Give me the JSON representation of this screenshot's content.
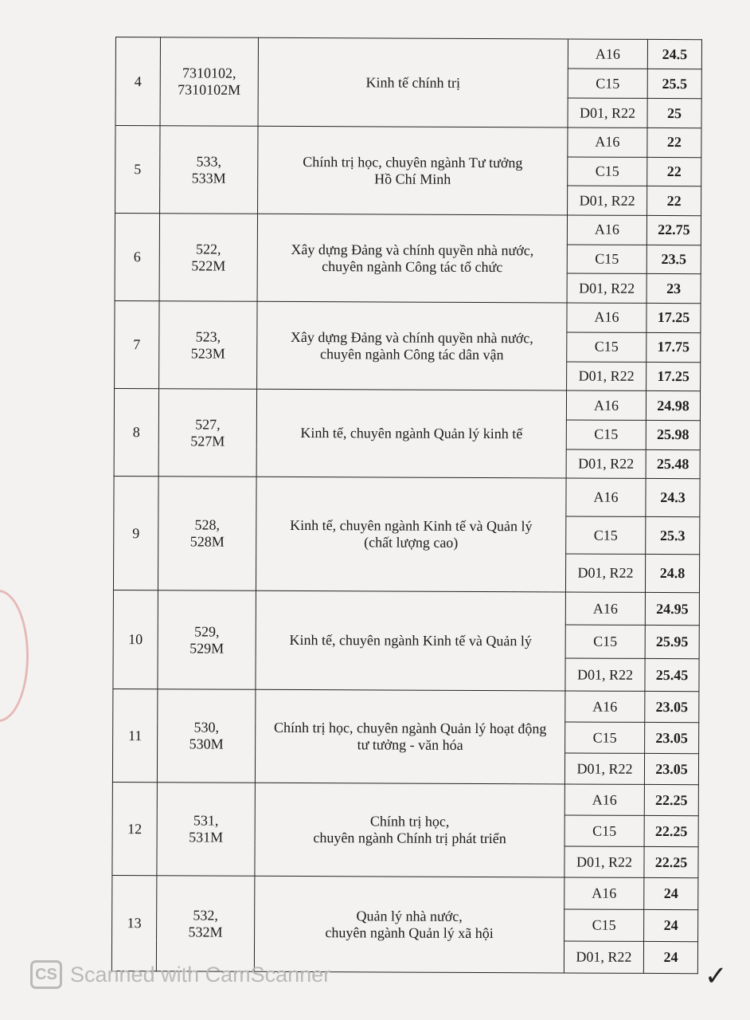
{
  "table": {
    "rows": [
      {
        "stt": "4",
        "code": "7310102,\n7310102M",
        "name": "Kinh tế chính trị",
        "blocks": [
          {
            "block": "A16",
            "score": "24.5"
          },
          {
            "block": "C15",
            "score": "25.5"
          },
          {
            "block": "D01, R22",
            "score": "25"
          }
        ]
      },
      {
        "stt": "5",
        "code": "533,\n533M",
        "name": "Chính trị học, chuyên ngành Tư tưởng\nHồ Chí Minh",
        "blocks": [
          {
            "block": "A16",
            "score": "22"
          },
          {
            "block": "C15",
            "score": "22"
          },
          {
            "block": "D01, R22",
            "score": "22"
          }
        ]
      },
      {
        "stt": "6",
        "code": "522,\n522M",
        "name": "Xây dựng Đảng và chính quyền nhà nước,\nchuyên ngành Công tác tổ chức",
        "blocks": [
          {
            "block": "A16",
            "score": "22.75"
          },
          {
            "block": "C15",
            "score": "23.5"
          },
          {
            "block": "D01, R22",
            "score": "23"
          }
        ]
      },
      {
        "stt": "7",
        "code": "523,\n523M",
        "name": "Xây dựng Đảng và chính quyền nhà nước,\nchuyên ngành Công tác dân vận",
        "blocks": [
          {
            "block": "A16",
            "score": "17.25"
          },
          {
            "block": "C15",
            "score": "17.75"
          },
          {
            "block": "D01, R22",
            "score": "17.25"
          }
        ]
      },
      {
        "stt": "8",
        "code": "527,\n527M",
        "name": "Kinh tế, chuyên ngành Quản lý kinh tế",
        "blocks": [
          {
            "block": "A16",
            "score": "24.98"
          },
          {
            "block": "C15",
            "score": "25.98"
          },
          {
            "block": "D01, R22",
            "score": "25.48"
          }
        ]
      },
      {
        "stt": "9",
        "code": "528,\n528M",
        "name": "Kinh tế, chuyên ngành Kinh tế và Quản lý\n(chất lượng cao)",
        "blocks": [
          {
            "block": "A16",
            "score": "24.3"
          },
          {
            "block": "C15",
            "score": "25.3"
          },
          {
            "block": "D01, R22",
            "score": "24.8"
          }
        ]
      },
      {
        "stt": "10",
        "code": "529,\n529M",
        "name": "Kinh tế, chuyên ngành Kinh tế và Quản lý",
        "blocks": [
          {
            "block": "A16",
            "score": "24.95"
          },
          {
            "block": "C15",
            "score": "25.95"
          },
          {
            "block": "D01, R22",
            "score": "25.45"
          }
        ]
      },
      {
        "stt": "11",
        "code": "530,\n530M",
        "name": "Chính trị học, chuyên ngành Quản lý hoạt động\ntư tưởng - văn hóa",
        "blocks": [
          {
            "block": "A16",
            "score": "23.05"
          },
          {
            "block": "C15",
            "score": "23.05"
          },
          {
            "block": "D01, R22",
            "score": "23.05"
          }
        ]
      },
      {
        "stt": "12",
        "code": "531,\n531M",
        "name": "Chính trị học,\nchuyên ngành Chính trị phát triển",
        "blocks": [
          {
            "block": "A16",
            "score": "22.25"
          },
          {
            "block": "C15",
            "score": "22.25"
          },
          {
            "block": "D01, R22",
            "score": "22.25"
          }
        ]
      },
      {
        "stt": "13",
        "code": "532,\n532M",
        "name": "Quản lý nhà nước,\nchuyên ngành Quản lý xã hội",
        "blocks": [
          {
            "block": "A16",
            "score": "24"
          },
          {
            "block": "C15",
            "score": "24"
          },
          {
            "block": "D01, R22",
            "score": "24"
          }
        ]
      }
    ]
  },
  "watermark": {
    "logo": "CS",
    "text": "Scanned with CamScanner"
  },
  "check_mark_icon": "checkmark"
}
